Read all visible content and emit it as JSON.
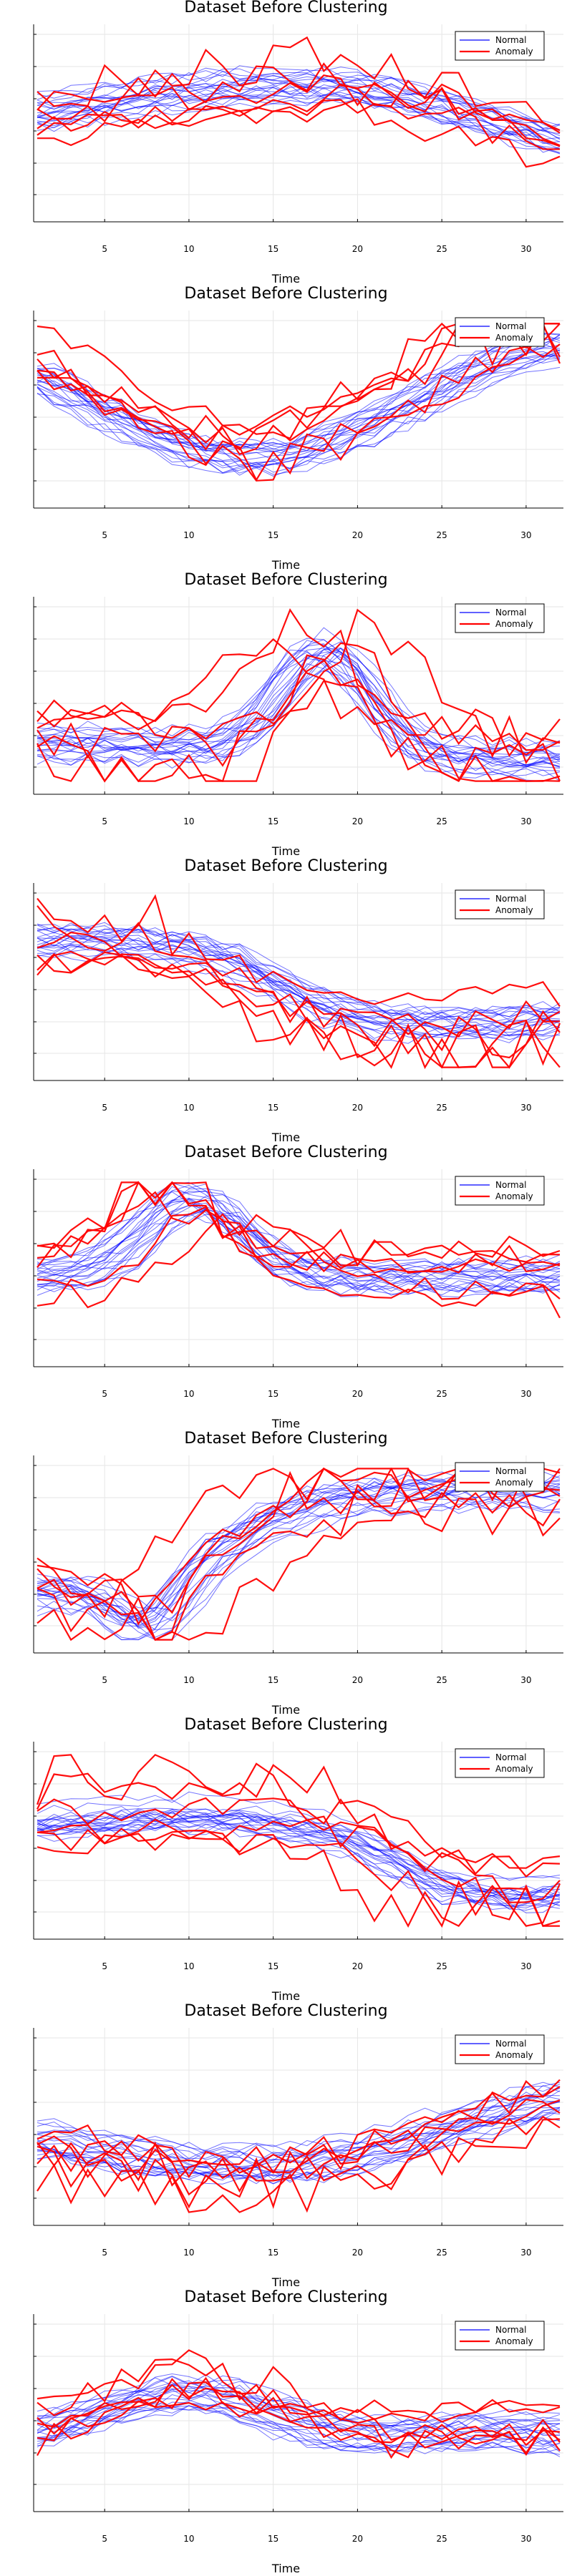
{
  "chart_data": [
    {
      "type": "line",
      "title": "Dataset Before Clustering",
      "xlabel": "Time",
      "ylabel": "",
      "xlim": [
        1,
        32
      ],
      "x_ticks": [
        5,
        10,
        15,
        20,
        25,
        30
      ],
      "grid": true,
      "legend": "top-right",
      "series": [
        {
          "name": "Normal",
          "color": "#0000ff"
        },
        {
          "name": "Anomaly",
          "color": "#ff0000"
        }
      ]
    },
    {
      "type": "line",
      "title": "Dataset Before Clustering",
      "xlabel": "Time",
      "ylabel": "",
      "xlim": [
        1,
        32
      ],
      "x_ticks": [
        5,
        10,
        15,
        20,
        25,
        30
      ],
      "grid": true,
      "legend": "top-right",
      "series": [
        {
          "name": "Normal",
          "color": "#0000ff"
        },
        {
          "name": "Anomaly",
          "color": "#ff0000"
        }
      ]
    },
    {
      "type": "line",
      "title": "Dataset Before Clustering",
      "xlabel": "Time",
      "ylabel": "",
      "xlim": [
        1,
        32
      ],
      "x_ticks": [
        5,
        10,
        15,
        20,
        25,
        30
      ],
      "grid": true,
      "legend": "top-right",
      "series": [
        {
          "name": "Normal",
          "color": "#0000ff"
        },
        {
          "name": "Anomaly",
          "color": "#ff0000"
        }
      ]
    },
    {
      "type": "line",
      "title": "Dataset Before Clustering",
      "xlabel": "Time",
      "ylabel": "",
      "xlim": [
        1,
        32
      ],
      "x_ticks": [
        5,
        10,
        15,
        20,
        25,
        30
      ],
      "grid": true,
      "legend": "top-right",
      "series": [
        {
          "name": "Normal",
          "color": "#0000ff"
        },
        {
          "name": "Anomaly",
          "color": "#ff0000"
        }
      ]
    },
    {
      "type": "line",
      "title": "Dataset Before Clustering",
      "xlabel": "Time",
      "ylabel": "",
      "xlim": [
        1,
        32
      ],
      "x_ticks": [
        5,
        10,
        15,
        20,
        25,
        30
      ],
      "grid": true,
      "legend": "top-right",
      "series": [
        {
          "name": "Normal",
          "color": "#0000ff"
        },
        {
          "name": "Anomaly",
          "color": "#ff0000"
        }
      ]
    },
    {
      "type": "line",
      "title": "Dataset Before Clustering",
      "xlabel": "Time",
      "ylabel": "",
      "xlim": [
        1,
        32
      ],
      "x_ticks": [
        5,
        10,
        15,
        20,
        25,
        30
      ],
      "grid": true,
      "legend": "top-right",
      "series": [
        {
          "name": "Normal",
          "color": "#0000ff"
        },
        {
          "name": "Anomaly",
          "color": "#ff0000"
        }
      ]
    },
    {
      "type": "line",
      "title": "Dataset Before Clustering",
      "xlabel": "Time",
      "ylabel": "",
      "xlim": [
        1,
        32
      ],
      "x_ticks": [
        5,
        10,
        15,
        20,
        25,
        30
      ],
      "grid": true,
      "legend": "top-right",
      "series": [
        {
          "name": "Normal",
          "color": "#0000ff"
        },
        {
          "name": "Anomaly",
          "color": "#ff0000"
        }
      ]
    },
    {
      "type": "line",
      "title": "Dataset Before Clustering",
      "xlabel": "Time",
      "ylabel": "",
      "xlim": [
        1,
        32
      ],
      "x_ticks": [
        5,
        10,
        15,
        20,
        25,
        30
      ],
      "grid": true,
      "legend": "top-right",
      "series": [
        {
          "name": "Normal",
          "color": "#0000ff"
        },
        {
          "name": "Anomaly",
          "color": "#ff0000"
        }
      ]
    },
    {
      "type": "line",
      "title": "Dataset Before Clustering",
      "xlabel": "Time",
      "ylabel": "",
      "xlim": [
        1,
        32
      ],
      "x_ticks": [
        5,
        10,
        15,
        20,
        25,
        30
      ],
      "grid": true,
      "legend": "top-right",
      "series": [
        {
          "name": "Normal",
          "color": "#0000ff"
        },
        {
          "name": "Anomaly",
          "color": "#ff0000"
        }
      ]
    }
  ]
}
